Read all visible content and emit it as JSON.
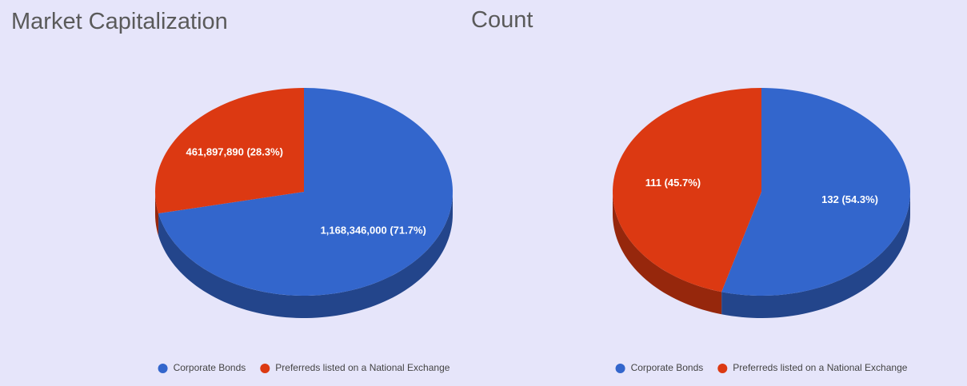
{
  "chart_data": [
    {
      "type": "pie",
      "title": "Market Capitalization",
      "categories": [
        "Corporate Bonds",
        "Preferreds listed on a National Exchange"
      ],
      "values": [
        1168346000,
        461897890
      ],
      "value_labels": [
        "1,168,346,000 (71.7%)",
        "461,897,890 (28.3%)"
      ],
      "colors": [
        "#3366cc",
        "#dc3912"
      ]
    },
    {
      "type": "pie",
      "title": "Count",
      "categories": [
        "Corporate Bonds",
        "Preferreds listed on a National Exchange"
      ],
      "values": [
        132,
        111
      ],
      "value_labels": [
        "132 (54.3%)",
        "111 (45.7%)"
      ],
      "colors": [
        "#3366cc",
        "#dc3912"
      ]
    }
  ]
}
